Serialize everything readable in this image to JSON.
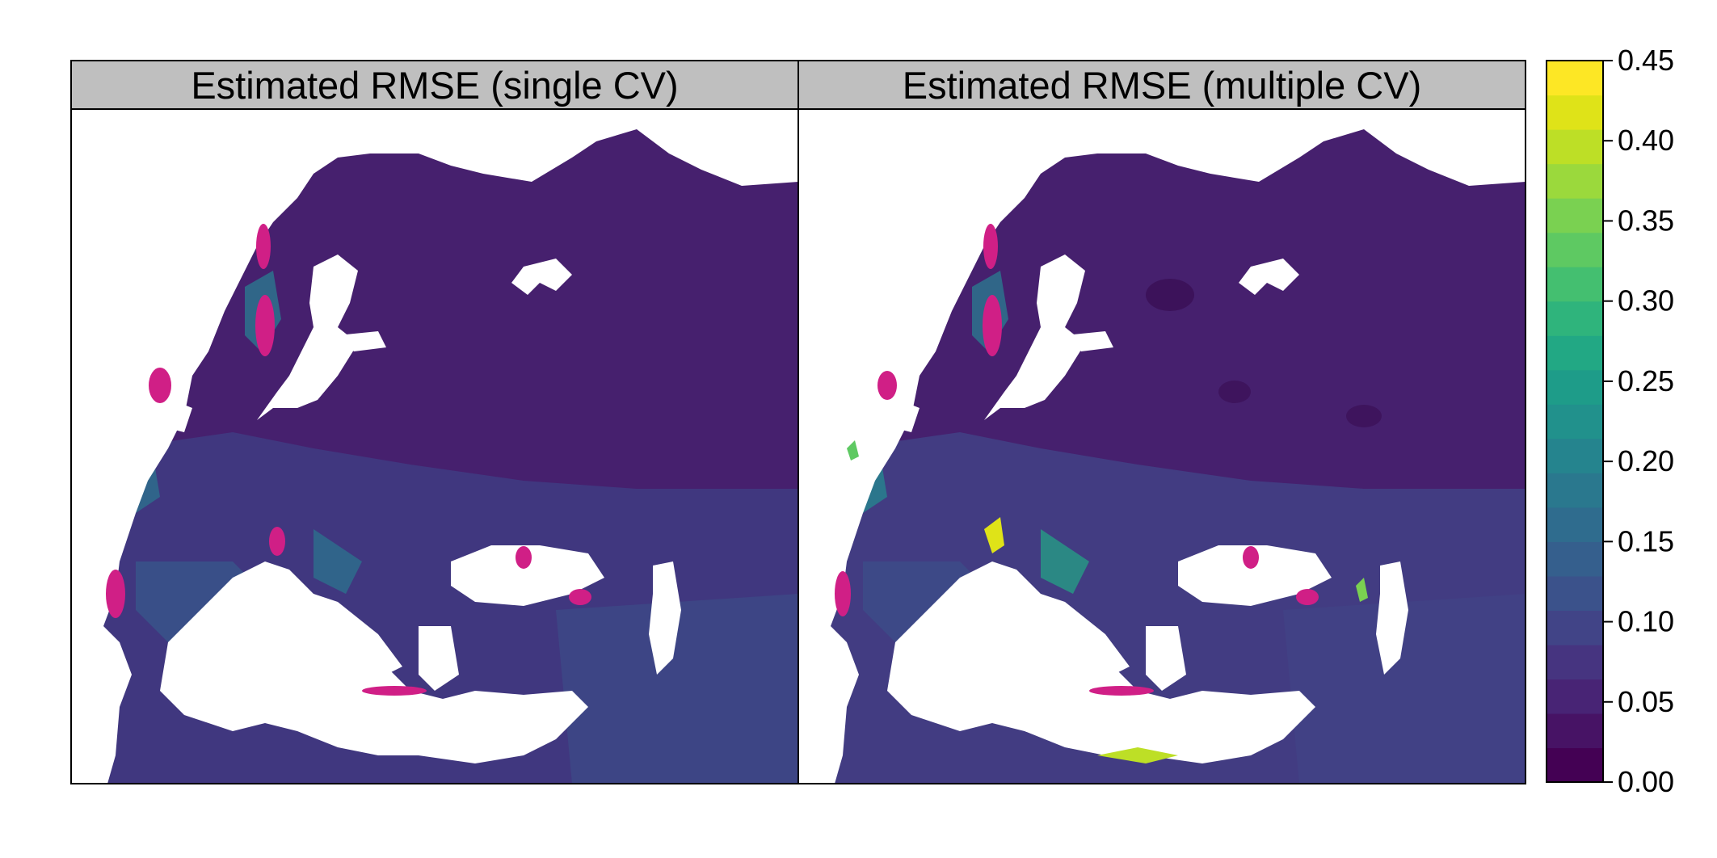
{
  "panels": [
    {
      "id": "single",
      "strip_title": "Estimated RMSE (single CV)",
      "blob_color_hint": "#c51b7d"
    },
    {
      "id": "multiple",
      "strip_title": "Estimated RMSE (multiple CV)",
      "blob_color_hint": "#c51b7d"
    }
  ],
  "colorbar": {
    "ticks": [
      "0.45",
      "0.40",
      "0.35",
      "0.30",
      "0.25",
      "0.20",
      "0.15",
      "0.10",
      "0.05",
      "0.00"
    ],
    "range": [
      0.0,
      0.45
    ],
    "palette": [
      "#440154",
      "#471365",
      "#482475",
      "#463480",
      "#414487",
      "#3b528b",
      "#355f8d",
      "#2f6c8e",
      "#2a788e",
      "#25848e",
      "#21918c",
      "#1e9c89",
      "#22a884",
      "#2fb47c",
      "#44bf70",
      "#5ec962",
      "#7ad151",
      "#9bd93c",
      "#bddf26",
      "#dfe318",
      "#fde725"
    ]
  },
  "colors": {
    "land_base": "#46206e",
    "land_mid": "#3f3f86",
    "coast_teal": "#2a788e",
    "highlight_magenta": "#d01f86",
    "strip_bg": "#bfbfbf",
    "water": "#ffffff"
  }
}
